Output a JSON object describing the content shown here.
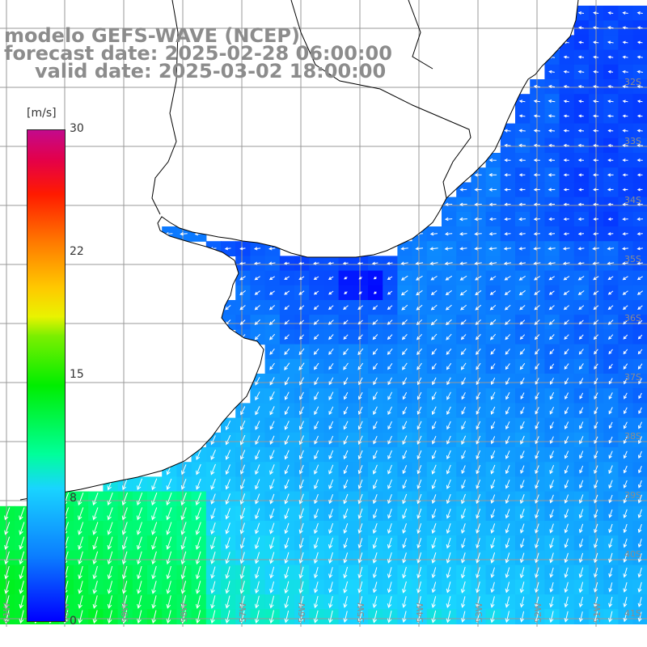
{
  "title": {
    "line1": "modelo GEFS-WAVE (NCEP)",
    "line2": "forecast date: 2025-02-28 06:00:00",
    "line3": "valid date: 2025-03-02 18:00:00"
  },
  "colorbar": {
    "units": "[m/s]",
    "ticks": [
      "30",
      "22",
      "15",
      "8",
      "0"
    ],
    "tick_values": [
      30,
      22,
      15,
      8,
      0
    ],
    "min": 0,
    "max": 30
  },
  "map": {
    "lon_labels": [
      "61W",
      "60W",
      "59W",
      "58W",
      "57W",
      "56W",
      "55W",
      "54W",
      "53W",
      "52W",
      "51W"
    ],
    "lat_labels": [
      "32S",
      "33S",
      "34S",
      "35S",
      "36S",
      "37S",
      "38S",
      "39S",
      "40S",
      "41S"
    ],
    "lon_range": [
      -62,
      -50
    ],
    "lat_range": [
      -31.5,
      -41.5
    ],
    "colors": {
      "land": "#ffffff",
      "coastline": "#000000",
      "grid": "#999999",
      "label": "#8c8c8c",
      "arrow": "#ffffff"
    },
    "speed_field_note_values": {
      "ocean_south_range": [
        6,
        12
      ],
      "rio_de_la_plata_range": [
        1,
        4
      ],
      "north_shelf_range": [
        2,
        6
      ]
    }
  }
}
